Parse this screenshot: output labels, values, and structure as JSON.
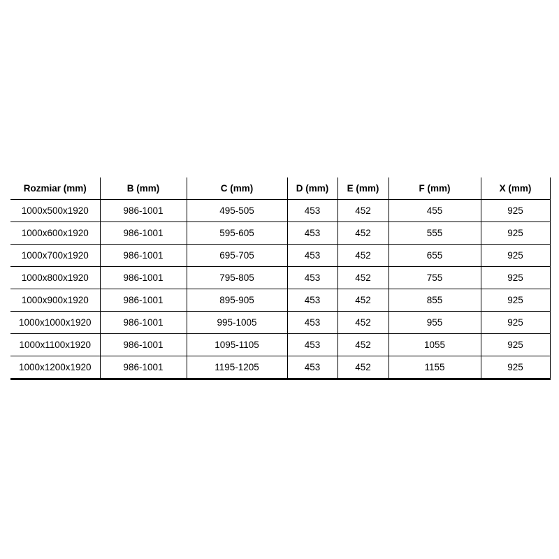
{
  "colors": {
    "background": "#ffffff",
    "border": "#000000",
    "text": "#000000"
  },
  "chart_data": {
    "type": "table",
    "columns": [
      "Rozmiar (mm)",
      "B (mm)",
      "C (mm)",
      "D (mm)",
      "E (mm)",
      "F (mm)",
      "X (mm)"
    ],
    "rows": [
      [
        "1000x500x1920",
        "986-1001",
        "495-505",
        "453",
        "452",
        "455",
        "925"
      ],
      [
        "1000x600x1920",
        "986-1001",
        "595-605",
        "453",
        "452",
        "555",
        "925"
      ],
      [
        "1000x700x1920",
        "986-1001",
        "695-705",
        "453",
        "452",
        "655",
        "925"
      ],
      [
        "1000x800x1920",
        "986-1001",
        "795-805",
        "453",
        "452",
        "755",
        "925"
      ],
      [
        "1000x900x1920",
        "986-1001",
        "895-905",
        "453",
        "452",
        "855",
        "925"
      ],
      [
        "1000x1000x1920",
        "986-1001",
        "995-1005",
        "453",
        "452",
        "955",
        "925"
      ],
      [
        "1000x1100x1920",
        "986-1001",
        "1095-1105",
        "453",
        "452",
        "1055",
        "925"
      ],
      [
        "1000x1200x1920",
        "986-1001",
        "1195-1205",
        "453",
        "452",
        "1155",
        "925"
      ]
    ]
  }
}
